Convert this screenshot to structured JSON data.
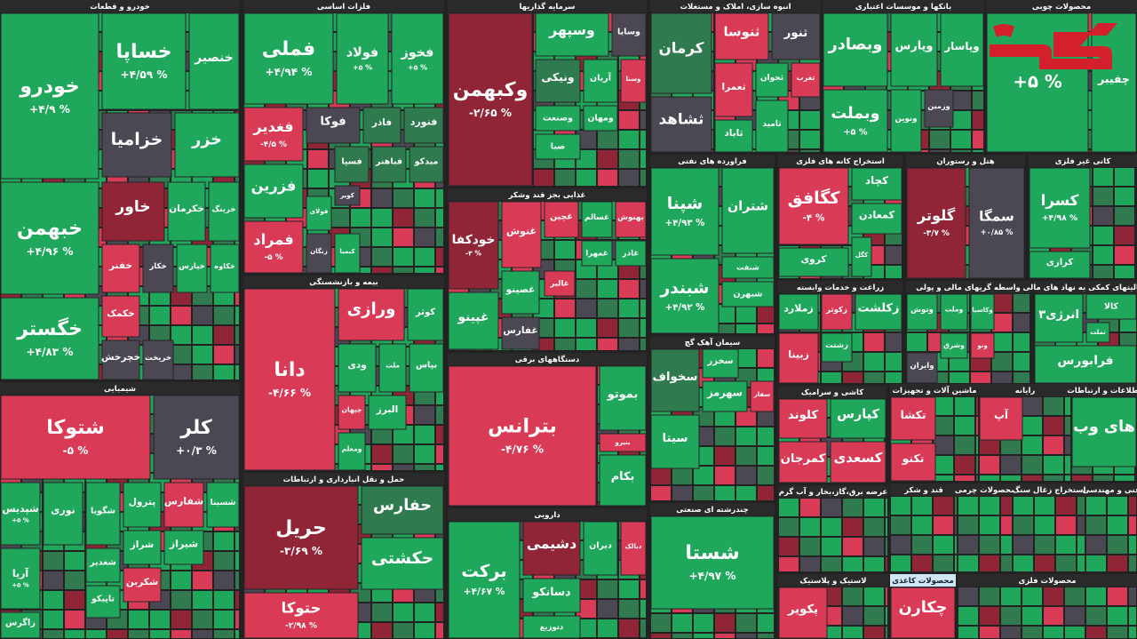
{
  "sectors": [
    {
      "title": "خودرو و قطعات",
      "tiles": [
        {
          "name": "خودرو",
          "change": "+۴/۹ %",
          "color": "#1fa85c"
        },
        {
          "name": "خساپا",
          "change": "+۴/۵۹ %",
          "color": "#1fa85c"
        },
        {
          "name": "خنصیر",
          "color": "#1fa85c"
        },
        {
          "name": "خزامیا",
          "color": "#4b4753"
        },
        {
          "name": "خزر",
          "color": "#1fa85c"
        },
        {
          "name": "خبهمن",
          "change": "+۴/۹۶ %",
          "color": "#1fa85c"
        },
        {
          "name": "خگستر",
          "change": "+۴/۸۳ %",
          "color": "#1fa85c"
        },
        {
          "name": "خاور",
          "color": "#8f2537"
        },
        {
          "name": "خکرمان",
          "color": "#1fa85c"
        },
        {
          "name": "خرینگ",
          "color": "#1fa85c"
        },
        {
          "name": "خفنر",
          "color": "#d93a55"
        },
        {
          "name": "خکار",
          "color": "#4b4753"
        },
        {
          "name": "خپارس",
          "color": "#1fa85c"
        },
        {
          "name": "خکاوه",
          "color": "#1fa85c"
        },
        {
          "name": "خکمک",
          "color": "#d93a55"
        },
        {
          "name": "خچرخش",
          "color": "#4b4753"
        },
        {
          "name": "خریخت",
          "color": "#4b4753"
        }
      ]
    },
    {
      "title": "شیمیایی",
      "tiles": [
        {
          "name": "شتوکا",
          "change": "-۵ %",
          "color": "#d93a55"
        },
        {
          "name": "کلر",
          "change": "+۰/۳ %",
          "color": "#4b4753"
        },
        {
          "name": "شپدیس",
          "change": "+۵ %",
          "color": "#1fa85c"
        },
        {
          "name": "نوری",
          "color": "#1fa85c"
        },
        {
          "name": "شگویا",
          "color": "#1fa85c"
        },
        {
          "name": "پترول",
          "color": "#1fa85c"
        },
        {
          "name": "شفارس",
          "color": "#d93a55"
        },
        {
          "name": "شسینا",
          "color": "#1fa85c"
        },
        {
          "name": "آریا",
          "change": "+۵ %",
          "color": "#1fa85c"
        },
        {
          "name": "زاگرس",
          "color": "#1fa85c"
        },
        {
          "name": "شغدیر",
          "color": "#1fa85c"
        },
        {
          "name": "شراز",
          "color": "#1fa85c"
        },
        {
          "name": "شیراز",
          "color": "#1fa85c"
        },
        {
          "name": "تاپیکو",
          "color": "#1fa85c"
        },
        {
          "name": "شکربن",
          "color": "#d93a55"
        }
      ]
    },
    {
      "title": "فلزات اساسی",
      "tiles": [
        {
          "name": "فملی",
          "change": "+۴/۹۴ %",
          "color": "#1fa85c"
        },
        {
          "name": "فولاد",
          "change": "+۵ %",
          "color": "#1fa85c"
        },
        {
          "name": "فخوز",
          "change": "+۵ %",
          "color": "#1fa85c"
        },
        {
          "name": "فغدیر",
          "change": "-۴/۵ %",
          "color": "#d93a55"
        },
        {
          "name": "فزرین",
          "color": "#1fa85c"
        },
        {
          "name": "فمراد",
          "change": "-۵ %",
          "color": "#d93a55"
        },
        {
          "name": "فوکا",
          "color": "#4b4753"
        },
        {
          "name": "فاذر",
          "color": "#2f7a4e"
        },
        {
          "name": "فنورد",
          "color": "#2f7a4e"
        },
        {
          "name": "فسپا",
          "color": "#2f7a4e"
        },
        {
          "name": "فباهنر",
          "color": "#2f7a4e"
        },
        {
          "name": "میدکو",
          "color": "#2f7a4e"
        },
        {
          "name": "کویر",
          "color": "#4b4753"
        },
        {
          "name": "زنگان",
          "color": "#4b4753"
        },
        {
          "name": "کیمیا",
          "color": "#1fa85c"
        },
        {
          "name": "فولای",
          "color": "#1fa85c"
        }
      ]
    },
    {
      "title": "بیمه و بازنشستگی",
      "tiles": [
        {
          "name": "دانا",
          "change": "-۴/۶۶ %",
          "color": "#d93a55"
        },
        {
          "name": "ورازی",
          "color": "#d93a55"
        },
        {
          "name": "کوثر",
          "color": "#1fa85c"
        },
        {
          "name": "ودی",
          "color": "#1fa85c"
        },
        {
          "name": "ملت",
          "color": "#1fa85c"
        },
        {
          "name": "بپاس",
          "color": "#1fa85c"
        },
        {
          "name": "جیهان",
          "color": "#d93a55"
        },
        {
          "name": "البرز",
          "color": "#1fa85c"
        },
        {
          "name": "ومعلم",
          "color": "#1fa85c"
        }
      ]
    },
    {
      "title": "حمل و نقل انبارداری و ارتباطات",
      "tiles": [
        {
          "name": "حریل",
          "change": "-۳/۶۹ %",
          "color": "#8f2537"
        },
        {
          "name": "حتوکا",
          "change": "-۲/۹۸ %",
          "color": "#d93a55"
        },
        {
          "name": "حفارس",
          "color": "#2f7a4e"
        },
        {
          "name": "حکشتی",
          "color": "#1fa85c"
        }
      ]
    },
    {
      "title": "سرمایه گذاریها",
      "tiles": [
        {
          "name": "وکبهمن",
          "change": "-۲/۶۵ %",
          "color": "#8f2537"
        },
        {
          "name": "وسپهر",
          "color": "#1fa85c"
        },
        {
          "name": "وسایا",
          "color": "#4b4753"
        },
        {
          "name": "ونیکی",
          "color": "#2f7a4e"
        },
        {
          "name": "آریان",
          "color": "#1fa85c"
        },
        {
          "name": "وسنا",
          "color": "#d93a55"
        },
        {
          "name": "وصنعت",
          "color": "#1fa85c"
        },
        {
          "name": "ومهان",
          "color": "#1fa85c"
        },
        {
          "name": "صبا",
          "color": "#1fa85c"
        }
      ]
    },
    {
      "title": "غذایی بجز قند وشکر",
      "tiles": [
        {
          "name": "خودکفا",
          "change": "-۳ %",
          "color": "#8f2537"
        },
        {
          "name": "غنوش",
          "color": "#d93a55"
        },
        {
          "name": "غچین",
          "color": "#d93a55"
        },
        {
          "name": "غسالم",
          "color": "#1fa85c"
        },
        {
          "name": "بهنوش",
          "color": "#d93a55"
        },
        {
          "name": "غپینو",
          "color": "#1fa85c"
        },
        {
          "name": "غصینو",
          "color": "#1fa85c"
        },
        {
          "name": "غفارس",
          "color": "#4b4753"
        },
        {
          "name": "غالبر",
          "color": "#d93a55"
        },
        {
          "name": "غمهرا",
          "color": "#1fa85c"
        },
        {
          "name": "غاذر",
          "color": "#1fa85c"
        }
      ]
    },
    {
      "title": "دستگاههای برقی",
      "tiles": [
        {
          "name": "بترانس",
          "change": "-۴/۷۶ %",
          "color": "#d93a55"
        },
        {
          "name": "بموتو",
          "color": "#1fa85c"
        },
        {
          "name": "بنیرو",
          "color": "#d93a55"
        },
        {
          "name": "بکام",
          "color": "#1fa85c"
        }
      ]
    },
    {
      "title": "دارویی",
      "tiles": [
        {
          "name": "برکت",
          "change": "+۴/۶۷ %",
          "color": "#1fa85c"
        },
        {
          "name": "دشیمی",
          "color": "#8f2537"
        },
        {
          "name": "دیران",
          "color": "#1fa85c"
        },
        {
          "name": "دبالک",
          "color": "#d93a55"
        },
        {
          "name": "دسانکو",
          "color": "#1fa85c"
        },
        {
          "name": "دتوزیع",
          "color": "#1fa85c"
        }
      ]
    },
    {
      "title": "انبوه سازی، املاک و مستغلات",
      "tiles": [
        {
          "name": "کرمان",
          "color": "#2f7a4e"
        },
        {
          "name": "ثنوسا",
          "color": "#d93a55"
        },
        {
          "name": "ثنور",
          "color": "#4b4753"
        },
        {
          "name": "ثشاهد",
          "color": "#4b4753"
        },
        {
          "name": "ثعمرا",
          "color": "#d93a55"
        },
        {
          "name": "ثجوان",
          "color": "#1fa85c"
        },
        {
          "name": "ثغرب",
          "color": "#d93a55"
        },
        {
          "name": "ثاباد",
          "color": "#1fa85c"
        },
        {
          "name": "ثامید",
          "color": "#1fa85c"
        }
      ]
    },
    {
      "title": "فراورده های نفتی",
      "tiles": [
        {
          "name": "شپنا",
          "change": "+۴/۹۳ %",
          "color": "#1fa85c"
        },
        {
          "name": "شتران",
          "color": "#1fa85c"
        },
        {
          "name": "شبندر",
          "change": "+۴/۹۲ %",
          "color": "#1fa85c"
        },
        {
          "name": "شنفت",
          "color": "#1fa85c"
        },
        {
          "name": "شبهرن",
          "color": "#1fa85c"
        }
      ]
    },
    {
      "title": "سیمان آهک گچ",
      "tiles": [
        {
          "name": "سخواف",
          "color": "#2f7a4e"
        },
        {
          "name": "سخزر",
          "color": "#1fa85c"
        },
        {
          "name": "سیتا",
          "color": "#1fa85c"
        },
        {
          "name": "سفار",
          "color": "#d93a55"
        },
        {
          "name": "سهرمز",
          "color": "#1fa85c"
        }
      ]
    },
    {
      "title": "چندرشته ای صنعتی",
      "tiles": [
        {
          "name": "شستا",
          "change": "+۴/۹۷ %",
          "color": "#1fa85c"
        }
      ]
    },
    {
      "title": "استخراج کانه های فلزی",
      "tiles": [
        {
          "name": "کگافق",
          "change": "-۴ %",
          "color": "#d93a55"
        },
        {
          "name": "کچاد",
          "color": "#1fa85c"
        },
        {
          "name": "کمعادن",
          "color": "#1fa85c"
        },
        {
          "name": "کگل",
          "color": "#1fa85c"
        },
        {
          "name": "کروی",
          "color": "#1fa85c"
        }
      ]
    },
    {
      "title": "بانکها و موسسات اعتباری",
      "tiles": [
        {
          "name": "وبصادر",
          "color": "#1fa85c"
        },
        {
          "name": "وپارس",
          "color": "#1fa85c"
        },
        {
          "name": "وپاسار",
          "color": "#1fa85c"
        },
        {
          "name": "وبملت",
          "change": "+۵ %",
          "color": "#1fa85c"
        },
        {
          "name": "ونوین",
          "color": "#1fa85c"
        },
        {
          "name": "وزمین",
          "color": "#4b4753"
        }
      ]
    },
    {
      "title": "محصولات چوبی",
      "tiles": [
        {
          "change": "+۵ %",
          "color": "#1fa85c"
        },
        {
          "name": "چفیبر",
          "color": "#1fa85c"
        }
      ]
    },
    {
      "title": "هتل و رستوران",
      "tiles": [
        {
          "name": "گلوتر",
          "change": "-۳/۷ %",
          "color": "#8f2537"
        },
        {
          "name": "سمگا",
          "change": "+۰/۸۵ %",
          "color": "#4b4753"
        }
      ]
    },
    {
      "title": "کانی غیر فلزی",
      "tiles": [
        {
          "name": "کسرا",
          "change": "+۴/۹۸ %",
          "color": "#1fa85c"
        },
        {
          "name": "کرازی",
          "color": "#1fa85c"
        }
      ]
    },
    {
      "title": "زراعت و خدمات وابسته",
      "tiles": [
        {
          "name": "زملارد",
          "color": "#1fa85c"
        },
        {
          "name": "زکوثر",
          "color": "#d93a55"
        },
        {
          "name": "زشتت",
          "color": "#1fa85c"
        },
        {
          "name": "زبینا",
          "color": "#d93a55"
        },
        {
          "name": "زکلشت",
          "color": "#1fa85c"
        }
      ]
    },
    {
      "title": "واسطه گریهای مالی و پولی",
      "tiles": [
        {
          "name": "وتوش",
          "color": "#1fa85c"
        },
        {
          "name": "وملت",
          "color": "#1fa85c"
        },
        {
          "name": "وکاسپا",
          "color": "#1fa85c"
        },
        {
          "name": "وشرق",
          "color": "#1fa85c"
        },
        {
          "name": "ونو",
          "color": "#d93a55"
        },
        {
          "name": "وایران",
          "color": "#4b4753"
        }
      ]
    },
    {
      "title": "فعالیتهای کمکی به نهاد های مالی",
      "tiles": [
        {
          "name": "انرژی۳",
          "color": "#1fa85c"
        },
        {
          "name": "کالا",
          "color": "#1fa85c"
        },
        {
          "name": "فرابورس",
          "color": "#1fa85c"
        },
        {
          "name": "تملت",
          "color": "#1fa85c"
        }
      ]
    },
    {
      "title": "ماشین آلات و تجهیزات",
      "tiles": [
        {
          "name": "تکشا",
          "color": "#d93a55"
        },
        {
          "name": "تکنو",
          "color": "#d93a55"
        }
      ]
    },
    {
      "title": "کاشی و سرامیک",
      "tiles": [
        {
          "name": "کلوند",
          "color": "#d93a55"
        },
        {
          "name": "کپارس",
          "color": "#1fa85c"
        },
        {
          "name": "کسعدی",
          "color": "#d93a55"
        },
        {
          "name": "کمرجان",
          "color": "#d93a55"
        }
      ]
    },
    {
      "title": "رایانه",
      "tiles": [
        {
          "name": "آپ",
          "color": "#d93a55"
        }
      ]
    },
    {
      "title": "اطلاعات و ارتباطات",
      "tiles": [
        {
          "name": "های وب",
          "color": "#1fa85c"
        }
      ]
    },
    {
      "title": "عرضه برق،گاز،بخار و آب گرم",
      "tiles": []
    },
    {
      "title": "لاستیک و پلاستیک",
      "tiles": [
        {
          "name": "پکویر",
          "color": "#d93a55"
        }
      ]
    },
    {
      "title": "محصولات کاغذی",
      "tiles": [
        {
          "name": "چکارن",
          "color": "#d93a55"
        }
      ]
    },
    {
      "title": "قند و شکر",
      "tiles": []
    },
    {
      "title": "محصولات چرمی",
      "tiles": []
    },
    {
      "title": "استخراج زغال سنگ",
      "tiles": []
    },
    {
      "title": "فنی و مهندسی",
      "tiles": []
    },
    {
      "title": "محصولات فلزی",
      "tiles": []
    }
  ]
}
